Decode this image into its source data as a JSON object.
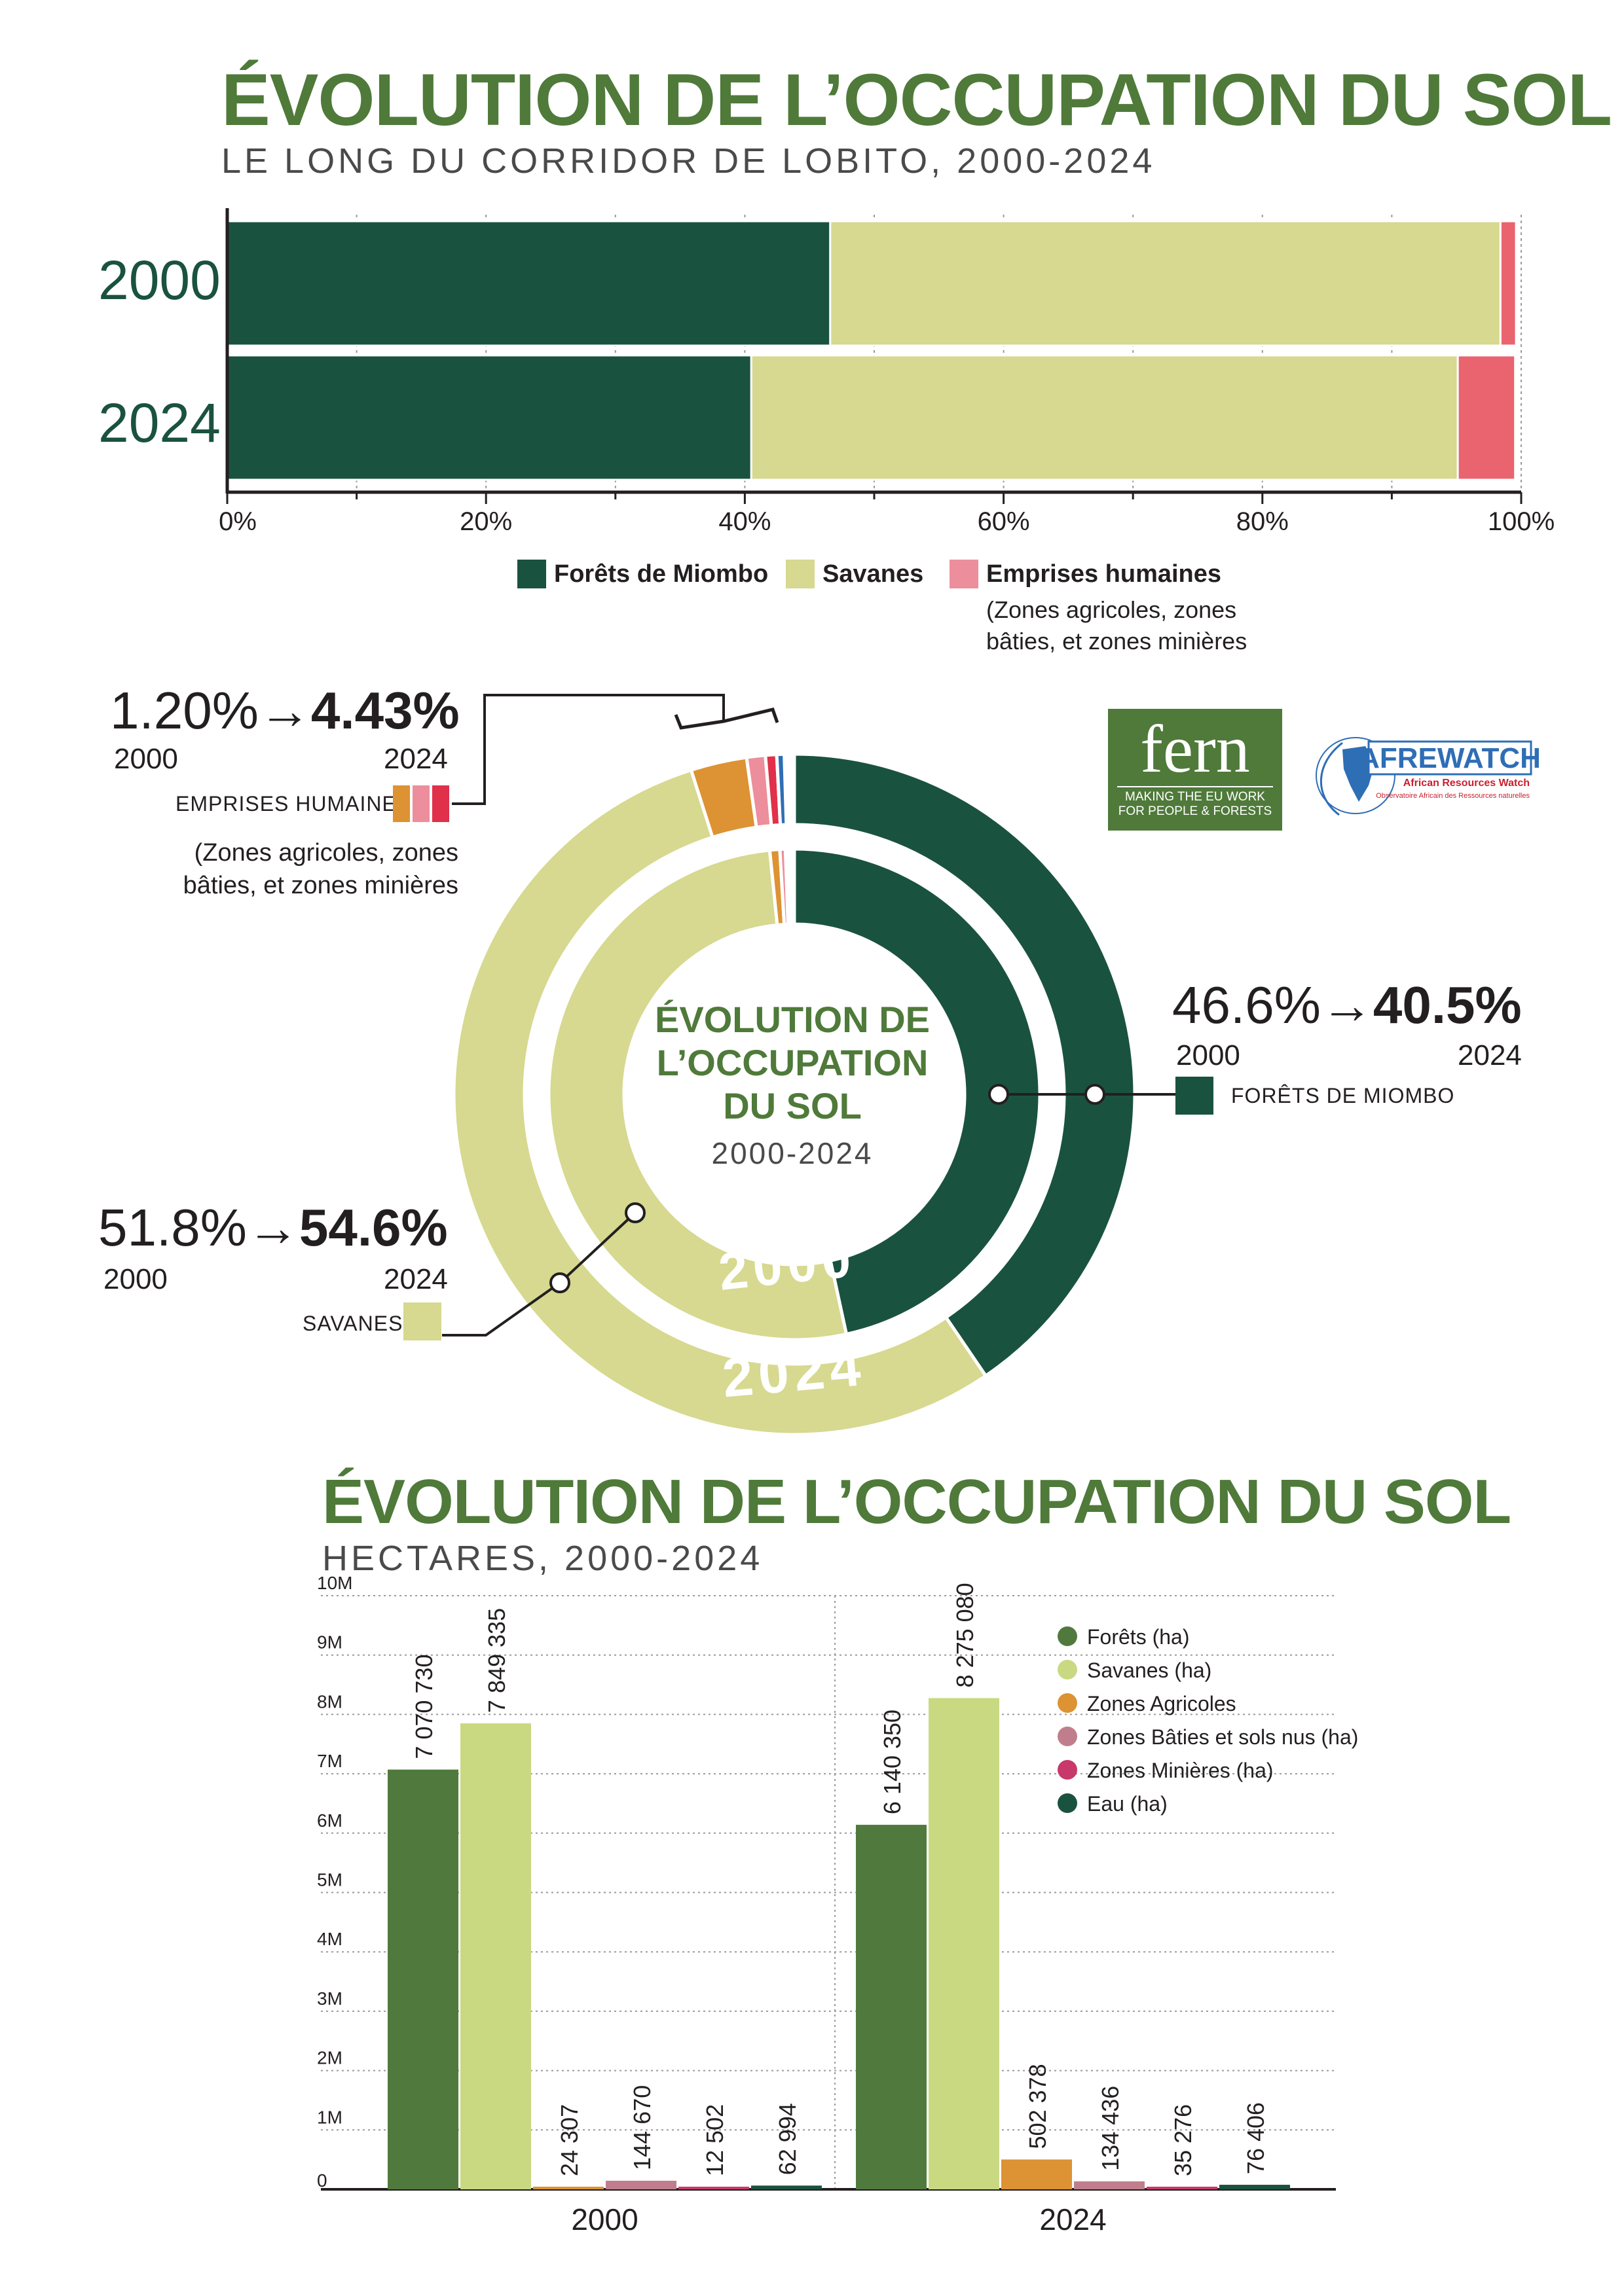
{
  "header": {
    "title": "ÉVOLUTION DE L’OCCUPATION DU SOL",
    "subtitle": "LE LONG DU CORRIDOR DE LOBITO, 2000-2024"
  },
  "colors": {
    "forest": "#1a5240",
    "savanna": "#d6d98f",
    "human": "#e9646f",
    "title_green": "#4f7a3a",
    "bar_forest": "#507a3d",
    "bar_savanna": "#c9d982",
    "bar_agri": "#dd9233",
    "bar_built": "#c07e8c",
    "bar_mining": "#c8386a",
    "bar_water": "#1a5240"
  },
  "legend_top": {
    "items": [
      {
        "label": "Forêts de Miombo",
        "color": "#1a5240"
      },
      {
        "label": "Savanes",
        "color": "#d6d98f"
      },
      {
        "label": "Emprises humaines",
        "color": "#ec8e9b"
      }
    ],
    "note": "(Zones agricoles, zones bâties, et zones minières"
  },
  "donut": {
    "center_title_line1": "ÉVOLUTION DE",
    "center_title_line2": "L’OCCUPATION",
    "center_title_line3": "DU SOL",
    "center_years": "2000-2024",
    "ring_inner_label": "2000",
    "ring_outer_label": "2024",
    "human": {
      "from": "1.20%",
      "arrow": "→",
      "to": "4.43%",
      "year_from": "2000",
      "year_to": "2024",
      "label": "EMPRISES HUMAINES",
      "note_line1": "(Zones agricoles, zones",
      "note_line2": "bâties, et zones minières"
    },
    "forest": {
      "from": "46.6%",
      "arrow": "→",
      "to": "40.5%",
      "year_from": "2000",
      "year_to": "2024",
      "label": "FORÊTS DE MIOMBO"
    },
    "savanna": {
      "from": "51.8%",
      "arrow": "→",
      "to": "54.6%",
      "year_from": "2000",
      "year_to": "2024",
      "label": "SAVANES"
    }
  },
  "logos": {
    "fern_word": "fern",
    "fern_tag1": "MAKING THE EU WORK",
    "fern_tag2": "FOR PEOPLE & FORESTS",
    "afrewatch_word": "AFREWATCH",
    "afrewatch_tag1": "African Resources Watch",
    "afrewatch_tag2": "Observatoire Africain des Ressources naturelles"
  },
  "section2": {
    "title": "ÉVOLUTION DE L’OCCUPATION DU SOL",
    "subtitle": "HECTARES, 2000-2024"
  },
  "chart_data": [
    {
      "type": "bar",
      "orientation": "horizontal-stacked-100",
      "categories": [
        "2000",
        "2024"
      ],
      "series": [
        {
          "name": "Forêts de Miombo",
          "values": [
            46.6,
            40.5
          ]
        },
        {
          "name": "Savanes",
          "values": [
            51.8,
            54.6
          ]
        },
        {
          "name": "Emprises humaines",
          "values": [
            1.2,
            4.43
          ]
        }
      ],
      "xlim": [
        0,
        100
      ],
      "x_ticks": [
        "0%",
        "20%",
        "40%",
        "60%",
        "80%",
        "100%"
      ],
      "legend": "bottom"
    },
    {
      "type": "pie",
      "variant": "donut-2-rings",
      "rings": [
        {
          "name": "2000",
          "values": {
            "Forêts de Miombo": 46.6,
            "Savanes": 51.8,
            "Emprises humaines": 1.2
          }
        },
        {
          "name": "2024",
          "values": {
            "Forêts de Miombo": 40.5,
            "Savanes": 54.6,
            "Emprises humaines": 4.43
          }
        }
      ]
    },
    {
      "type": "bar",
      "categories": [
        "2000",
        "2024"
      ],
      "series": [
        {
          "name": "Forêts (ha)",
          "values": [
            7070730,
            6140350
          ],
          "labels": [
            "7 070 730",
            "6 140 350"
          ]
        },
        {
          "name": "Savanes (ha)",
          "values": [
            7849335,
            8275080
          ],
          "labels": [
            "7 849 335",
            "8 275 080"
          ]
        },
        {
          "name": "Zones Agricoles",
          "values": [
            24307,
            502378
          ],
          "labels": [
            "24 307",
            "502 378"
          ]
        },
        {
          "name": "Zones Bâties et sols nus (ha)",
          "values": [
            144670,
            134436
          ],
          "labels": [
            "144 670",
            "134 436"
          ]
        },
        {
          "name": "Zones Minières (ha)",
          "values": [
            12502,
            35276
          ],
          "labels": [
            "12 502",
            "35 276"
          ]
        },
        {
          "name": "Eau (ha)",
          "values": [
            62994,
            76406
          ],
          "labels": [
            "62 994",
            "76 406"
          ]
        }
      ],
      "ylim": [
        0,
        10000000
      ],
      "y_ticks": [
        "0",
        "1M",
        "2M",
        "3M",
        "4M",
        "5M",
        "6M",
        "7M",
        "8M",
        "9M",
        "10M"
      ],
      "legend": "top-right",
      "grid": true
    }
  ]
}
